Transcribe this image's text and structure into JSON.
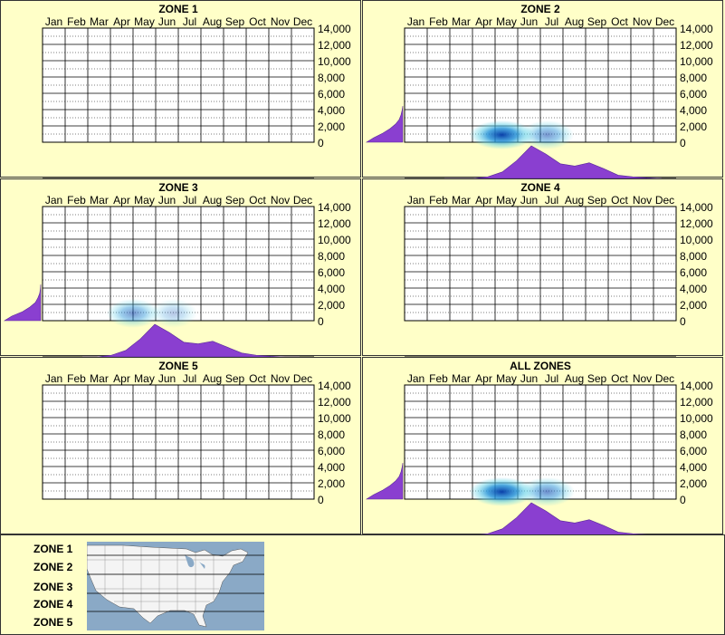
{
  "months": [
    "Jan",
    "Feb",
    "Mar",
    "Apr",
    "May",
    "Jun",
    "Jul",
    "Aug",
    "Sep",
    "Oct",
    "Nov",
    "Dec"
  ],
  "y_ticks": [
    "14,000",
    "12,000",
    "10,000",
    "8,000",
    "6,000",
    "4,000",
    "2,000",
    "0"
  ],
  "colors": {
    "background": "#ffffc8",
    "density_fill": "#8a3fd0",
    "heat_core": "#0a3fa8",
    "heat_outer": "#5fd2e6",
    "map_water": "#8aa9c6",
    "map_land": "#f4f4f4"
  },
  "chart_data": [
    {
      "type": "heatmap",
      "title": "ZONE 1",
      "xlabel": "",
      "ylabel": "",
      "ylim": [
        0,
        14000
      ],
      "categories": [
        "Jan",
        "Feb",
        "Mar",
        "Apr",
        "May",
        "Jun",
        "Jul",
        "Aug",
        "Sep",
        "Oct",
        "Nov",
        "Dec"
      ],
      "hot_spots": [],
      "month_density": [],
      "elevation_density": []
    },
    {
      "type": "heatmap",
      "title": "ZONE 2",
      "xlabel": "",
      "ylabel": "",
      "ylim": [
        0,
        14000
      ],
      "categories": [
        "Jan",
        "Feb",
        "Mar",
        "Apr",
        "May",
        "Jun",
        "Jul",
        "Aug",
        "Sep",
        "Oct",
        "Nov",
        "Dec"
      ],
      "hot_spots": [
        {
          "month": 4.3,
          "elevation": 900,
          "intensity": 1.0
        },
        {
          "month": 6.3,
          "elevation": 900,
          "intensity": 0.55
        }
      ],
      "month_density": [
        0,
        0,
        0,
        0.05,
        0.2,
        0.55,
        1.0,
        0.75,
        0.45,
        0.38,
        0.48,
        0.3,
        0.1,
        0.05,
        0.02,
        0
      ],
      "elevation_density": [
        1.0,
        0.8,
        0.55,
        0.35,
        0.2,
        0.1,
        0.05,
        0.02,
        0
      ]
    },
    {
      "type": "heatmap",
      "title": "ZONE 3",
      "xlabel": "",
      "ylabel": "",
      "ylim": [
        0,
        14000
      ],
      "categories": [
        "Jan",
        "Feb",
        "Mar",
        "Apr",
        "May",
        "Jun",
        "Jul",
        "Aug",
        "Sep",
        "Oct",
        "Nov",
        "Dec"
      ],
      "hot_spots": [
        {
          "month": 4.0,
          "elevation": 900,
          "intensity": 0.55
        },
        {
          "month": 5.8,
          "elevation": 900,
          "intensity": 0.3
        }
      ],
      "month_density": [
        0,
        0,
        0.05,
        0.2,
        0.55,
        1.0,
        0.75,
        0.45,
        0.4,
        0.48,
        0.3,
        0.12,
        0.05,
        0.02,
        0,
        0
      ],
      "elevation_density": [
        1.0,
        0.8,
        0.5,
        0.3,
        0.15,
        0.08,
        0.03,
        0.01,
        0
      ]
    },
    {
      "type": "heatmap",
      "title": "ZONE 4",
      "xlabel": "",
      "ylabel": "",
      "ylim": [
        0,
        14000
      ],
      "categories": [
        "Jan",
        "Feb",
        "Mar",
        "Apr",
        "May",
        "Jun",
        "Jul",
        "Aug",
        "Sep",
        "Oct",
        "Nov",
        "Dec"
      ],
      "hot_spots": [],
      "month_density": [],
      "elevation_density": []
    },
    {
      "type": "heatmap",
      "title": "ZONE 5",
      "xlabel": "",
      "ylabel": "",
      "ylim": [
        0,
        14000
      ],
      "categories": [
        "Jan",
        "Feb",
        "Mar",
        "Apr",
        "May",
        "Jun",
        "Jul",
        "Aug",
        "Sep",
        "Oct",
        "Nov",
        "Dec"
      ],
      "hot_spots": [],
      "month_density": [],
      "elevation_density": []
    },
    {
      "type": "heatmap",
      "title": "ALL ZONES",
      "xlabel": "",
      "ylabel": "",
      "ylim": [
        0,
        14000
      ],
      "categories": [
        "Jan",
        "Feb",
        "Mar",
        "Apr",
        "May",
        "Jun",
        "Jul",
        "Aug",
        "Sep",
        "Oct",
        "Nov",
        "Dec"
      ],
      "hot_spots": [
        {
          "month": 4.3,
          "elevation": 900,
          "intensity": 1.0
        },
        {
          "month": 6.3,
          "elevation": 900,
          "intensity": 0.6
        }
      ],
      "month_density": [
        0,
        0,
        0,
        0.05,
        0.2,
        0.55,
        1.0,
        0.75,
        0.45,
        0.38,
        0.48,
        0.3,
        0.1,
        0.05,
        0.02,
        0
      ],
      "elevation_density": [
        1.0,
        0.8,
        0.55,
        0.35,
        0.2,
        0.1,
        0.05,
        0.02,
        0
      ]
    }
  ],
  "zone_legend": [
    "ZONE 1",
    "ZONE 2",
    "ZONE 3",
    "ZONE 4",
    "ZONE 5"
  ]
}
